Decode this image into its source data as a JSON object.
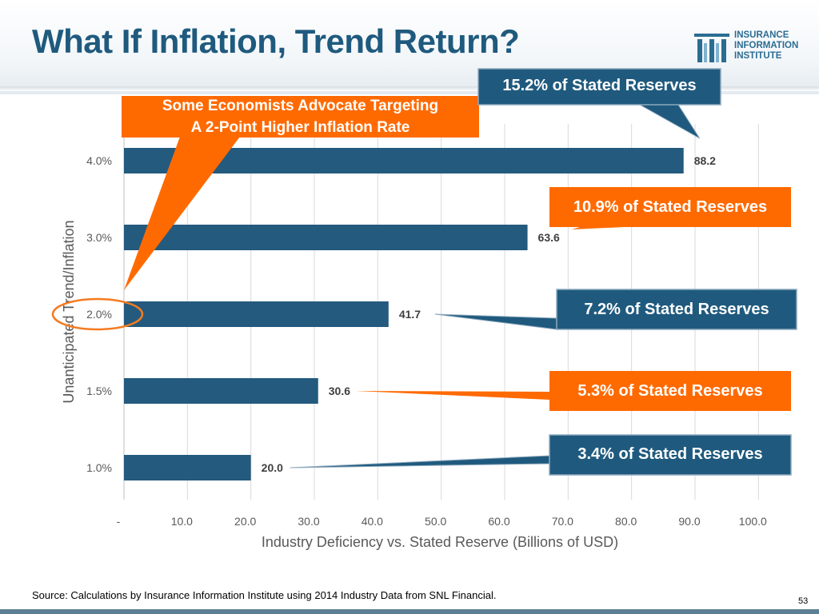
{
  "title": "What If Inflation, Trend Return?",
  "logo": {
    "lines": [
      "INSURANCE",
      "INFORMATION",
      "INSTITUTE"
    ],
    "icon": "iii-columns-icon"
  },
  "colors": {
    "title": "#1f5a7e",
    "bar": "#235a7e",
    "orange": "#ff6a00",
    "navy": "#1f5a7e"
  },
  "chart_data": {
    "type": "bar",
    "orientation": "horizontal",
    "categories": [
      "4.0%",
      "3.0%",
      "2.0%",
      "1.5%",
      "1.0%"
    ],
    "values": [
      88.2,
      63.6,
      41.7,
      30.6,
      20.0
    ],
    "value_labels": [
      "88.2",
      "63.6",
      "41.7",
      "30.6",
      "20.0"
    ],
    "xticks": [
      "-",
      "10.0",
      "20.0",
      "30.0",
      "40.0",
      "50.0",
      "60.0",
      "70.0",
      "80.0",
      "90.0",
      "100.0"
    ],
    "xlim": [
      0,
      105
    ],
    "xlabel": "Industry Deficiency vs. Stated Reserve (Billions of USD)",
    "ylabel": "Unanticipated Trend/Inflation",
    "grid": true,
    "highlighted_category": "2.0%"
  },
  "callouts": {
    "economists": {
      "lines": [
        "Some Economists Advocate Targeting",
        "A 2-Point Higher Inflation Rate"
      ]
    },
    "reserves": [
      {
        "text": "15.2% of Stated Reserves",
        "category": "4.0%"
      },
      {
        "text": "10.9% of Stated Reserves",
        "category": "3.0%"
      },
      {
        "text": "7.2% of Stated Reserves",
        "category": "2.0%"
      },
      {
        "text": "5.3% of Stated Reserves",
        "category": "1.5%"
      },
      {
        "text": "3.4% of Stated Reserves",
        "category": "1.0%"
      }
    ]
  },
  "footer": {
    "source": "Source: Calculations by Insurance Information Institute using 2014 Industry Data from SNL Financial.",
    "page_number": "53"
  }
}
